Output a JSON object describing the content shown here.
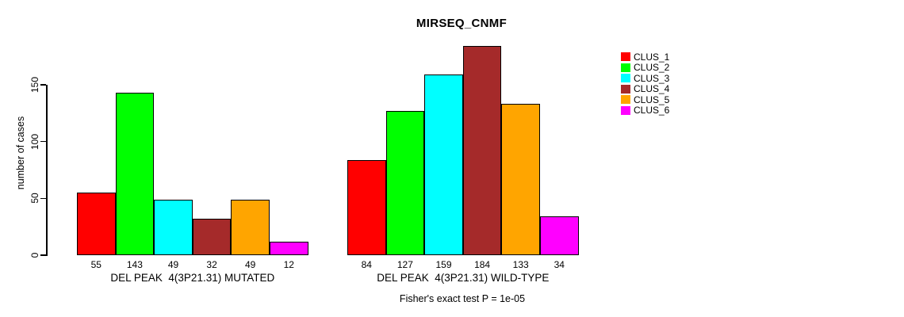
{
  "title": "MIRSEQ_CNMF",
  "chart_data": {
    "type": "bar",
    "title": "MIRSEQ_CNMF",
    "xlabel": "",
    "ylabel": "number of cases",
    "ylim": [
      0,
      184
    ],
    "yticks": [
      0,
      50,
      100,
      150
    ],
    "grid": false,
    "legend_position": "right-outside",
    "bar_value_labels_shown": true,
    "categories": [
      "DEL PEAK  4(3P21.31) MUTATED",
      "DEL PEAK  4(3P21.31) WILD-TYPE"
    ],
    "series": [
      {
        "name": "CLUS_1",
        "color": "#ff0000",
        "values": [
          55,
          84
        ]
      },
      {
        "name": "CLUS_2",
        "color": "#00ff00",
        "values": [
          143,
          127
        ]
      },
      {
        "name": "CLUS_3",
        "color": "#00ffff",
        "values": [
          49,
          159
        ]
      },
      {
        "name": "CLUS_4",
        "color": "#a52a2a",
        "values": [
          32,
          184
        ]
      },
      {
        "name": "CLUS_5",
        "color": "#ffa500",
        "values": [
          49,
          133
        ]
      },
      {
        "name": "CLUS_6",
        "color": "#ff00ff",
        "values": [
          12,
          34
        ]
      }
    ],
    "annotation": "Fisher's exact test P = 1e-05"
  },
  "colors": {
    "background": "#ffffff",
    "axis": "#000000",
    "bar_border": "#000000",
    "text": "#000000"
  }
}
